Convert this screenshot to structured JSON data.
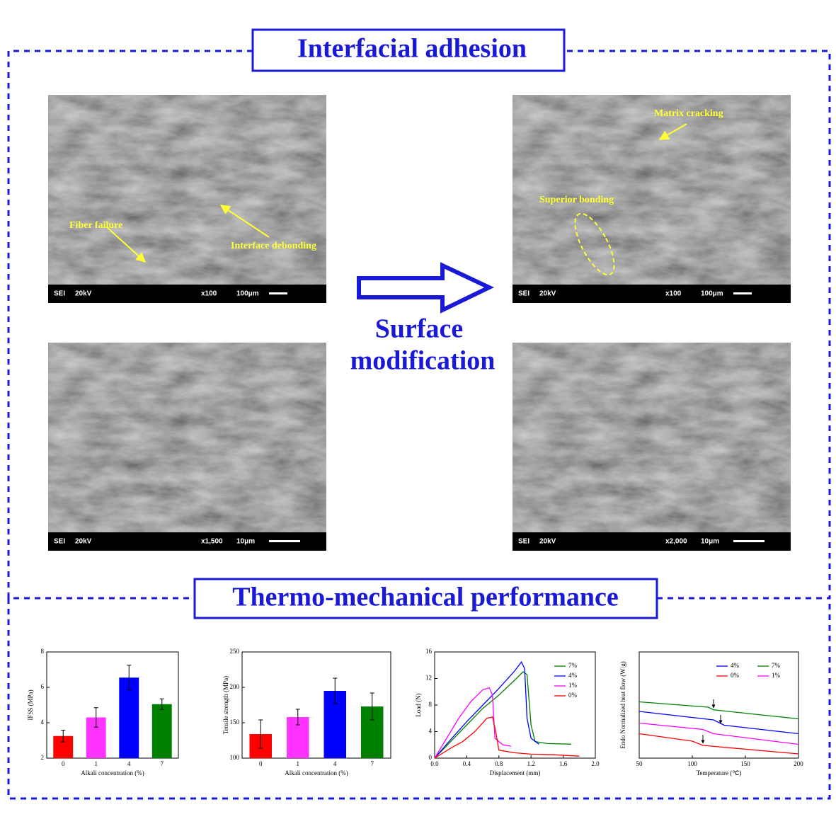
{
  "header": {
    "title": "Interfacial adhesion"
  },
  "middle": {
    "lines": [
      "Surface",
      "modification"
    ]
  },
  "images": [
    {
      "bar": [
        "SEI",
        "20kV",
        "x100",
        "100μm"
      ],
      "annotations": [
        "Fiber failure",
        "Interface debonding"
      ]
    },
    {
      "bar": [
        "SEI",
        "20kV",
        "x100",
        "100μm"
      ],
      "annotations": [
        "Matrix cracking",
        "Superior bonding"
      ]
    },
    {
      "bar": [
        "SEI",
        "20kV",
        "x1,500",
        "10μm"
      ],
      "annotations": []
    },
    {
      "bar": [
        "SEI",
        "20kV",
        "x2,000",
        "10μm"
      ],
      "annotations": []
    }
  ],
  "section2": {
    "title": "Thermo-mechanical performance"
  },
  "chart_data": [
    {
      "type": "bar",
      "y_label": "IFSS (MPa)",
      "x_label": "Alkali concentration (%)",
      "categories": [
        "0",
        "1",
        "4",
        "7"
      ],
      "values": [
        3.25,
        4.3,
        6.55,
        5.05
      ],
      "errors": [
        0.33,
        0.55,
        0.7,
        0.3
      ],
      "colors": [
        "#ff0000",
        "#ff33ff",
        "#0000ff",
        "#008000"
      ],
      "ylim": [
        2,
        8
      ],
      "yticks": [
        2,
        4,
        6,
        8
      ]
    },
    {
      "type": "bar",
      "y_label": "Tensile strength (MPa)",
      "x_label": "Alkali concentration (%)",
      "categories": [
        "0",
        "1",
        "4",
        "7"
      ],
      "values": [
        134,
        158,
        195,
        173
      ],
      "errors": [
        20,
        11,
        18,
        19
      ],
      "colors": [
        "#ff0000",
        "#ff33ff",
        "#0000ff",
        "#008000"
      ],
      "ylim": [
        100,
        250
      ],
      "yticks": [
        100,
        150,
        200,
        250
      ]
    },
    {
      "type": "line",
      "y_label": "Load (N)",
      "x_label": "Displacement  (mm)",
      "xlim": [
        0,
        2.0
      ],
      "xticks": [
        {
          "value": 0,
          "label": "0.0"
        },
        0.4,
        0.8,
        1.2,
        1.6,
        {
          "value": 2.0,
          "label": "2.0"
        }
      ],
      "ylim": [
        0,
        16
      ],
      "yticks": [
        0,
        4,
        8,
        12,
        16
      ],
      "legend": "top-right",
      "legend_columns": 1,
      "series": [
        {
          "name": "7%",
          "color": "#008000",
          "x": [
            0,
            0.2,
            0.4,
            0.6,
            0.8,
            1.0,
            1.1,
            1.15,
            1.2,
            1.25,
            1.4,
            1.7
          ],
          "values": [
            0,
            2.5,
            5,
            7.5,
            9.5,
            11.8,
            13,
            12.6,
            5,
            2.5,
            2.2,
            2.1
          ]
        },
        {
          "name": "4%",
          "color": "#0000ff",
          "x": [
            0,
            0.2,
            0.4,
            0.6,
            0.8,
            1.0,
            1.08,
            1.12,
            1.15,
            1.2,
            1.3
          ],
          "values": [
            0,
            2.8,
            5.5,
            8,
            10.5,
            13.2,
            14.5,
            13.5,
            6,
            3,
            2.1
          ]
        },
        {
          "name": "1%",
          "color": "#ff00ff",
          "x": [
            0,
            0.15,
            0.3,
            0.45,
            0.6,
            0.68,
            0.72,
            0.75,
            0.85,
            0.95
          ],
          "values": [
            0,
            3,
            6,
            8.5,
            10.3,
            10.6,
            9.5,
            3,
            2,
            1.8
          ]
        },
        {
          "name": "0%",
          "color": "#ff0000",
          "x": [
            0,
            0.2,
            0.35,
            0.5,
            0.65,
            0.72,
            0.76,
            0.8,
            1.0,
            1.2,
            1.5,
            1.8
          ],
          "values": [
            0,
            1.5,
            2.5,
            4,
            6,
            6.2,
            4,
            1.2,
            0.8,
            0.6,
            0.5,
            0.3
          ]
        }
      ]
    },
    {
      "type": "line",
      "y_label": "Endo Normalized heat flow (W/g)",
      "x_label": "Temperature (℃)",
      "xlim": [
        50,
        200
      ],
      "xticks": [
        50,
        100,
        150,
        200
      ],
      "ylim": [
        0,
        10
      ],
      "yticks": [],
      "legend": "top-right",
      "legend_columns": 2,
      "series": [
        {
          "name": "4%",
          "color": "#0000ff",
          "x": [
            50,
            120,
            130,
            200
          ],
          "values": [
            4.4,
            3.6,
            3.1,
            2.3
          ]
        },
        {
          "name": "7%",
          "color": "#008000",
          "x": [
            50,
            115,
            120,
            200
          ],
          "values": [
            5.3,
            4.8,
            4.55,
            3.7
          ]
        },
        {
          "name": "0%",
          "color": "#ff0000",
          "x": [
            50,
            100,
            110,
            200
          ],
          "values": [
            2.3,
            1.6,
            1.2,
            0.4
          ]
        },
        {
          "name": "1%",
          "color": "#ff00ff",
          "x": [
            50,
            110,
            120,
            200
          ],
          "values": [
            3.3,
            2.7,
            2.3,
            1.3
          ]
        }
      ]
    }
  ]
}
